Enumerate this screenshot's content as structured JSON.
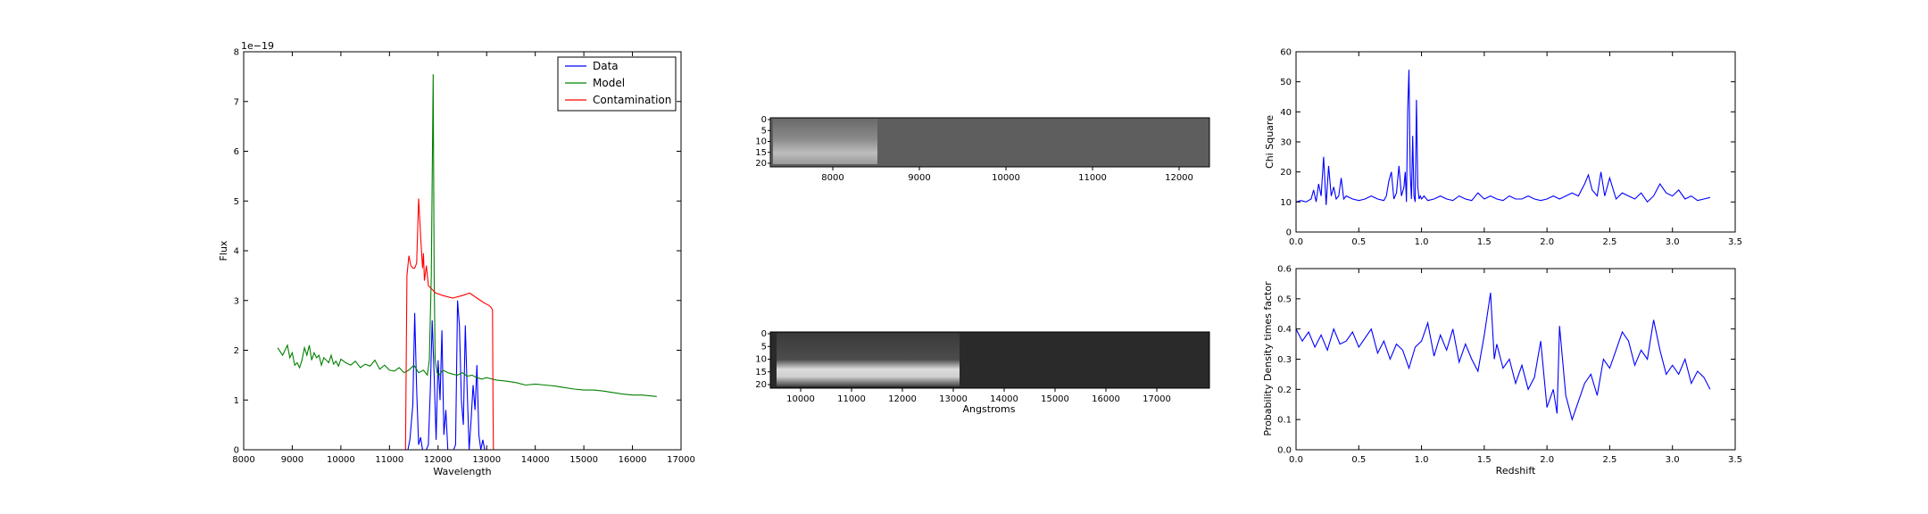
{
  "chart_data": [
    {
      "id": "spectrum",
      "type": "line",
      "xlabel": "Wavelength",
      "ylabel": "Flux",
      "offset_label": "1e−19",
      "xlim": [
        8000,
        17000
      ],
      "ylim": [
        0,
        8
      ],
      "xticks": [
        8000,
        9000,
        10000,
        11000,
        12000,
        13000,
        14000,
        15000,
        16000,
        17000
      ],
      "yticks": [
        0,
        1,
        2,
        3,
        4,
        5,
        6,
        7,
        8
      ],
      "legend": "top-right",
      "series": [
        {
          "name": "Data",
          "color": "#0000ff",
          "x": [
            8700,
            11380,
            11420,
            11480,
            11520,
            11560,
            11600,
            11640,
            11680,
            11720,
            11760,
            11800,
            11840,
            11880,
            11920,
            11960,
            12000,
            12040,
            12080,
            12120,
            12160,
            12200,
            12240,
            12280,
            12320,
            12360,
            12400,
            12440,
            12480,
            12520,
            12560,
            12600,
            12640,
            12680,
            12720,
            12760,
            12800,
            12840,
            12880,
            12920,
            12960,
            13000,
            13040,
            13080,
            13120,
            13160,
            13200,
            16500
          ],
          "y": [
            0,
            0,
            0.2,
            0.9,
            2.75,
            1.2,
            0.1,
            0.25,
            0,
            0,
            0,
            0.1,
            1.2,
            2.6,
            1.5,
            0.2,
            1.8,
            1.0,
            2.4,
            0.3,
            0.8,
            0,
            0,
            0,
            0,
            0.1,
            3.0,
            2.5,
            1.0,
            0.5,
            2.5,
            1.2,
            0,
            0.6,
            1.3,
            0.8,
            1.7,
            0.3,
            0,
            0.2,
            0,
            0,
            0,
            0,
            0,
            0,
            0,
            0
          ]
        },
        {
          "name": "Model",
          "color": "#008000",
          "x": [
            8700,
            8800,
            8900,
            8950,
            9000,
            9050,
            9100,
            9150,
            9200,
            9250,
            9300,
            9350,
            9400,
            9450,
            9500,
            9550,
            9600,
            9650,
            9700,
            9750,
            9800,
            9850,
            9900,
            9950,
            10000,
            10100,
            10200,
            10300,
            10400,
            10500,
            10600,
            10700,
            10800,
            10900,
            11000,
            11100,
            11200,
            11300,
            11400,
            11500,
            11600,
            11700,
            11780,
            11820,
            11860,
            11900,
            11920,
            11940,
            11980,
            12020,
            12100,
            12200,
            12300,
            12400,
            12500,
            12600,
            12700,
            12800,
            12900,
            13000,
            13200,
            13400,
            13600,
            13800,
            14000,
            14200,
            14400,
            14600,
            14800,
            15000,
            15200,
            15400,
            15600,
            15800,
            16000,
            16200,
            16400,
            16500
          ],
          "y": [
            2.05,
            1.9,
            2.1,
            1.85,
            1.95,
            1.7,
            1.75,
            1.65,
            1.8,
            2.05,
            1.9,
            2.1,
            1.8,
            1.95,
            1.85,
            1.9,
            1.7,
            1.85,
            1.8,
            1.75,
            1.9,
            1.72,
            1.78,
            1.68,
            1.82,
            1.75,
            1.7,
            1.78,
            1.65,
            1.72,
            1.68,
            1.8,
            1.62,
            1.7,
            1.6,
            1.58,
            1.65,
            1.55,
            1.6,
            1.7,
            1.55,
            1.6,
            1.5,
            1.8,
            3.5,
            7.55,
            3.5,
            1.8,
            1.55,
            1.5,
            1.6,
            1.55,
            1.52,
            1.5,
            1.55,
            1.48,
            1.5,
            1.45,
            1.42,
            1.45,
            1.4,
            1.38,
            1.35,
            1.3,
            1.32,
            1.3,
            1.28,
            1.25,
            1.22,
            1.2,
            1.2,
            1.18,
            1.15,
            1.12,
            1.1,
            1.1,
            1.08,
            1.07
          ]
        },
        {
          "name": "Contamination",
          "color": "#ff0000",
          "x": [
            8700,
            11330,
            11360,
            11400,
            11440,
            11480,
            11520,
            11560,
            11600,
            11640,
            11680,
            11700,
            11720,
            11760,
            11800,
            11850,
            11950,
            12100,
            12300,
            12500,
            12650,
            12800,
            12950,
            13050,
            13100,
            13120,
            13130,
            13140,
            16500
          ],
          "y": [
            0,
            0,
            3.5,
            3.9,
            3.7,
            3.65,
            3.65,
            3.75,
            5.05,
            4.3,
            3.65,
            3.95,
            3.4,
            3.7,
            3.3,
            3.25,
            3.15,
            3.1,
            3.05,
            3.1,
            3.15,
            3.05,
            2.95,
            2.9,
            2.85,
            2.8,
            1.0,
            0,
            0
          ]
        }
      ]
    },
    {
      "id": "stamp-top",
      "type": "heatmap",
      "xticks": [
        8000,
        9000,
        10000,
        11000,
        12000
      ],
      "yticks": [
        0,
        5,
        10,
        15,
        20
      ]
    },
    {
      "id": "stamp-bottom",
      "type": "heatmap",
      "xlabel": "Angstroms",
      "xticks": [
        10000,
        11000,
        12000,
        13000,
        14000,
        15000,
        16000,
        17000
      ],
      "yticks": [
        0,
        5,
        10,
        15,
        20
      ]
    },
    {
      "id": "chisq",
      "type": "line",
      "ylabel": "Chi Square",
      "xlim": [
        0,
        3.5
      ],
      "ylim": [
        0,
        60
      ],
      "xticks": [
        0.0,
        0.5,
        1.0,
        1.5,
        2.0,
        2.5,
        3.0,
        3.5
      ],
      "yticks": [
        0,
        10,
        20,
        30,
        40,
        50,
        60
      ],
      "series": [
        {
          "color": "#0000ff",
          "x": [
            0,
            0.04,
            0.08,
            0.12,
            0.14,
            0.16,
            0.18,
            0.2,
            0.22,
            0.24,
            0.26,
            0.28,
            0.3,
            0.32,
            0.34,
            0.36,
            0.38,
            0.4,
            0.45,
            0.5,
            0.55,
            0.6,
            0.65,
            0.7,
            0.72,
            0.74,
            0.76,
            0.78,
            0.8,
            0.82,
            0.84,
            0.86,
            0.87,
            0.88,
            0.89,
            0.9,
            0.91,
            0.92,
            0.93,
            0.94,
            0.95,
            0.96,
            0.97,
            0.98,
            0.99,
            1.0,
            1.02,
            1.05,
            1.1,
            1.15,
            1.2,
            1.25,
            1.3,
            1.35,
            1.4,
            1.45,
            1.5,
            1.55,
            1.6,
            1.65,
            1.7,
            1.75,
            1.8,
            1.85,
            1.9,
            1.95,
            2.0,
            2.05,
            2.1,
            2.15,
            2.2,
            2.25,
            2.3,
            2.33,
            2.36,
            2.4,
            2.43,
            2.46,
            2.5,
            2.55,
            2.6,
            2.65,
            2.7,
            2.75,
            2.8,
            2.85,
            2.9,
            2.95,
            3.0,
            3.05,
            3.1,
            3.15,
            3.2,
            3.25,
            3.3
          ],
          "y": [
            10,
            10.5,
            10,
            11,
            14,
            10,
            16,
            12,
            25,
            9,
            22,
            12,
            15,
            11,
            12,
            18,
            11,
            12,
            11,
            10.5,
            11,
            12,
            11,
            10.5,
            12,
            17,
            20,
            11,
            13,
            22,
            12,
            15,
            20,
            10,
            41,
            54,
            20,
            11,
            32,
            12,
            10,
            44,
            15,
            11,
            12,
            11,
            12,
            10.5,
            11,
            12,
            11,
            10.5,
            12,
            11,
            10.5,
            13,
            11,
            12,
            11,
            10.5,
            12,
            11,
            11,
            12,
            11,
            10.5,
            11,
            12,
            11,
            12,
            13,
            12,
            16,
            19,
            14,
            12,
            20,
            12,
            18,
            11,
            13,
            12,
            11,
            13,
            10,
            12,
            16,
            13,
            12,
            14,
            11,
            12,
            10.5,
            11,
            11.5
          ]
        }
      ]
    },
    {
      "id": "pdf",
      "type": "line",
      "xlabel": "Redshift",
      "ylabel": "Probability Density times factor",
      "xlim": [
        0,
        3.5
      ],
      "ylim": [
        0,
        0.6
      ],
      "xticks": [
        0.0,
        0.5,
        1.0,
        1.5,
        2.0,
        2.5,
        3.0,
        3.5
      ],
      "yticks": [
        0.0,
        0.1,
        0.2,
        0.3,
        0.4,
        0.5,
        0.6
      ],
      "series": [
        {
          "color": "#0000ff",
          "x": [
            0,
            0.05,
            0.1,
            0.15,
            0.2,
            0.25,
            0.3,
            0.35,
            0.4,
            0.45,
            0.5,
            0.55,
            0.6,
            0.65,
            0.7,
            0.75,
            0.8,
            0.85,
            0.9,
            0.95,
            1.0,
            1.05,
            1.1,
            1.15,
            1.2,
            1.25,
            1.3,
            1.35,
            1.4,
            1.45,
            1.5,
            1.55,
            1.58,
            1.6,
            1.65,
            1.7,
            1.75,
            1.8,
            1.85,
            1.9,
            1.95,
            2.0,
            2.05,
            2.08,
            2.1,
            2.15,
            2.2,
            2.25,
            2.3,
            2.35,
            2.4,
            2.45,
            2.5,
            2.55,
            2.6,
            2.65,
            2.7,
            2.75,
            2.8,
            2.85,
            2.9,
            2.95,
            3.0,
            3.05,
            3.1,
            3.15,
            3.2,
            3.25,
            3.3
          ],
          "y": [
            0.4,
            0.36,
            0.39,
            0.34,
            0.38,
            0.33,
            0.4,
            0.35,
            0.36,
            0.39,
            0.34,
            0.37,
            0.4,
            0.32,
            0.36,
            0.3,
            0.35,
            0.33,
            0.27,
            0.34,
            0.36,
            0.42,
            0.31,
            0.38,
            0.33,
            0.4,
            0.29,
            0.35,
            0.3,
            0.26,
            0.38,
            0.52,
            0.3,
            0.35,
            0.27,
            0.3,
            0.22,
            0.28,
            0.2,
            0.24,
            0.36,
            0.14,
            0.2,
            0.12,
            0.41,
            0.18,
            0.1,
            0.16,
            0.22,
            0.25,
            0.18,
            0.3,
            0.27,
            0.33,
            0.39,
            0.36,
            0.28,
            0.33,
            0.3,
            0.43,
            0.33,
            0.25,
            0.28,
            0.25,
            0.3,
            0.22,
            0.26,
            0.24,
            0.2
          ]
        }
      ]
    }
  ]
}
